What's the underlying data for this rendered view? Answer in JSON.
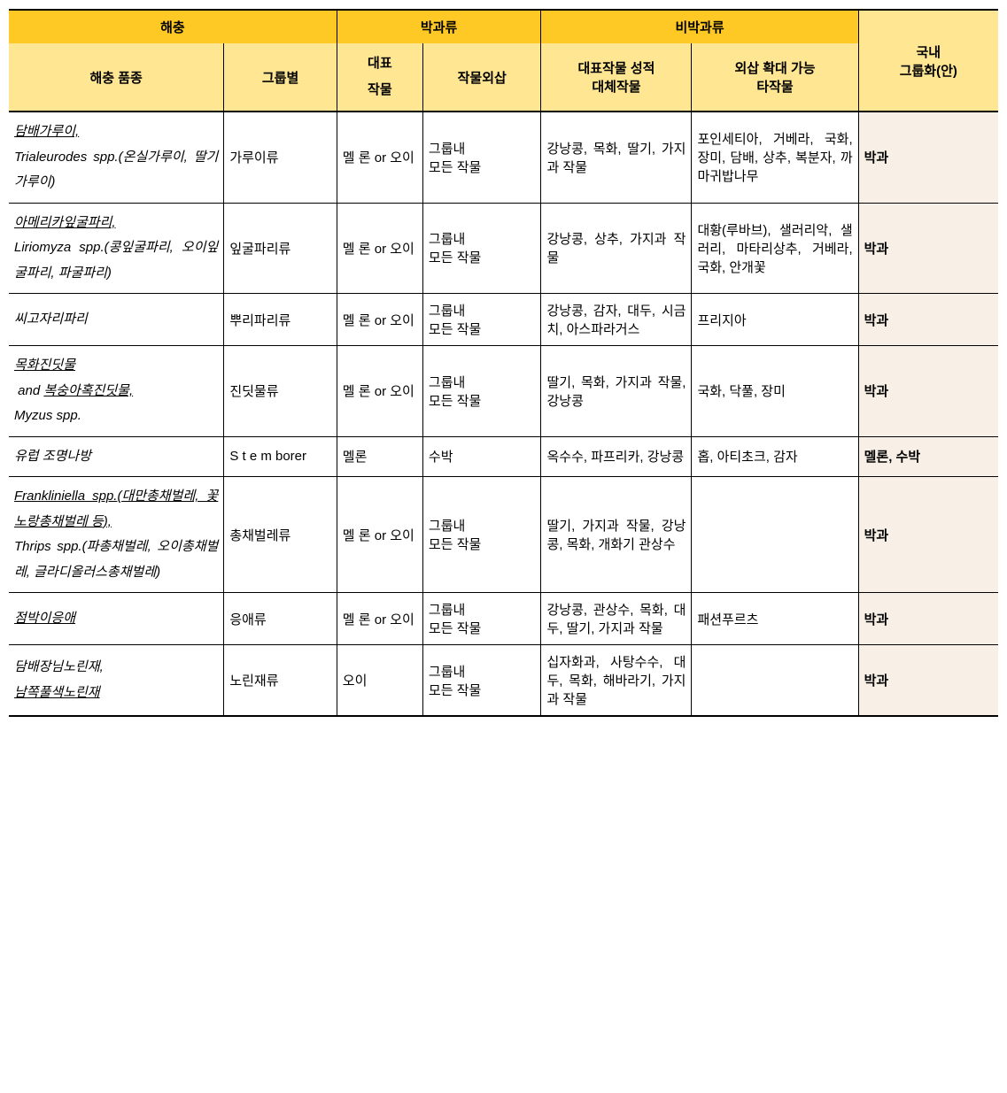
{
  "header": {
    "pest": "해충",
    "cucurbits": "박과류",
    "non_cucurbits": "비박과류",
    "domestic_group": "국내\n그룹화(안)",
    "species": "해충 품종",
    "group": "그룹별",
    "rep_crop": "대표\n작물",
    "extrapolation": "작물외삽",
    "substitute": "대표작물 성적\n대체작물",
    "other_crops": "외삽 확대 가능\n타작물"
  },
  "rows": [
    {
      "species_html": "<span class='italic underline'>담배가루이,</span><br><span class='italic'>Trialeurodes spp.(온실가루이, 딸기가루이)</span>",
      "group": "가루이류",
      "rep_crop": "멜 론 or 오이",
      "extrapolation": "그룹내\n모든 작물",
      "substitute": "강낭콩, 목화, 딸기, 가지과 작물",
      "other": "포인세티아, 거베라, 국화, 장미, 담배, 상추, 복분자, 까마귀밥나무",
      "domestic": "박과"
    },
    {
      "species_html": "<span class='italic underline'>아메리카잎굴파리,</span><br><span class='italic'>Liriomyza spp.(콩잎굴파리, 오이잎굴파리, 파굴파리)</span>",
      "group": "잎굴파리류",
      "rep_crop": "멜 론 or 오이",
      "extrapolation": "그룹내\n모든 작물",
      "substitute": "강낭콩, 상추, 가지과 작물",
      "other": "대황(루바브), 샐러리악, 샐러리, 마타리상추, 거베라, 국화, 안개꽃",
      "domestic": "박과"
    },
    {
      "species_html": "<span class='italic'>씨고자리파리</span>",
      "group": "뿌리파리류",
      "rep_crop": "멜 론 or 오이",
      "extrapolation": "그룹내\n모든 작물",
      "substitute": "강낭콩, 감자, 대두, 시금치, 아스파라거스",
      "other": "프리지아",
      "domestic": "박과"
    },
    {
      "species_html": "<span class='italic underline'>목화진딧물</span><br><span class='italic'>&nbsp;and </span><span class='italic underline'>복숭아혹진딧물,</span><br><span class='italic'>Myzus spp.</span>",
      "group": "진딧물류",
      "rep_crop": "멜 론 or 오이",
      "extrapolation": "그룹내\n모든 작물",
      "substitute": "딸기, 목화, 가지과 작물, 강낭콩",
      "other": "국화, 닥풀, 장미",
      "domestic": "박과"
    },
    {
      "species_html": "<span class='italic'>유럽 조명나방</span>",
      "group": "S t e m borer",
      "rep_crop": "멜론",
      "extrapolation": "수박",
      "substitute": "옥수수, 파프리카, 강낭콩",
      "other": "홉, 아티초크, 감자",
      "domestic": "멜론, 수박"
    },
    {
      "species_html": "<span class='italic underline'>Frankliniella spp.(대만총채벌레, 꽃노랑총채벌레 등),</span><br><span class='italic'>Thrips spp.(파총채벌레, 오이총채벌레, 글라디올러스총채벌레)</span>",
      "group": "총채벌레류",
      "rep_crop": "멜 론 or 오이",
      "extrapolation": "그룹내\n모든 작물",
      "substitute": "딸기, 가지과 작물, 강낭콩, 목화, 개화기 관상수",
      "other": "",
      "domestic": "박과"
    },
    {
      "species_html": "<span class='italic underline'>점박이응애</span>",
      "group": "응애류",
      "rep_crop": "멜 론 or 오이",
      "extrapolation": "그룹내\n모든 작물",
      "substitute": "강낭콩, 관상수, 목화, 대두, 딸기, 가지과 작물",
      "other": "패션푸르츠",
      "domestic": "박과"
    },
    {
      "species_html": "<span class='italic'>담배장님노린재,</span><br><span class='italic underline'>남쪽풀색노린재</span>",
      "group": "노린재류",
      "rep_crop": "오이",
      "extrapolation": "그룹내\n모든 작물",
      "substitute": "십자화과, 사탕수수, 대두, 목화, 해바라기, 가지과 작물",
      "other": "",
      "domestic": "박과"
    }
  ]
}
